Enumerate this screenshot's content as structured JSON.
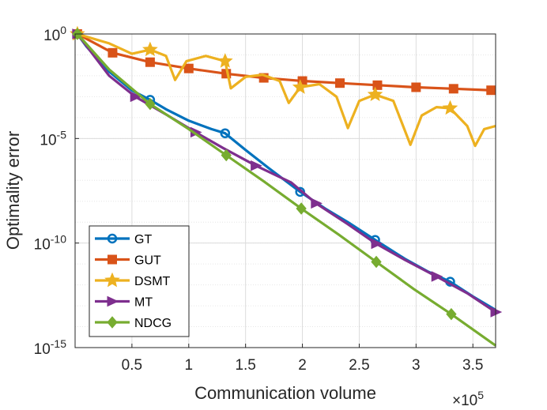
{
  "chart_data": {
    "type": "line",
    "title": "",
    "xlabel": "Communication volume",
    "ylabel": "Optimality error",
    "x_multiplier": "×10",
    "x_multiplier_exp": "5",
    "xscale": "linear",
    "yscale": "log",
    "xlim": [
      0.0,
      3.7
    ],
    "ylim_exp": [
      -15,
      0
    ],
    "grid": true,
    "x_ticks": [
      {
        "value": 0.5,
        "label": "0.5"
      },
      {
        "value": 1.0,
        "label": "1"
      },
      {
        "value": 1.5,
        "label": "1.5"
      },
      {
        "value": 2.0,
        "label": "2"
      },
      {
        "value": 2.5,
        "label": "2.5"
      },
      {
        "value": 3.0,
        "label": "3"
      },
      {
        "value": 3.5,
        "label": "3.5"
      }
    ],
    "y_ticks": [
      {
        "exp": 0,
        "base": "10",
        "sup": "0"
      },
      {
        "exp": -5,
        "base": "10",
        "sup": "-5"
      },
      {
        "exp": -10,
        "base": "10",
        "sup": "-10"
      },
      {
        "exp": -15,
        "base": "10",
        "sup": "-15"
      }
    ],
    "legend_position": "bottom-left",
    "series": [
      {
        "name": "GT",
        "color": "#0072BD",
        "marker": "circle",
        "points": [
          [
            0.02,
            0.0
          ],
          [
            0.1,
            -0.6
          ],
          [
            0.3,
            -1.8
          ],
          [
            0.5,
            -2.7
          ],
          [
            0.66,
            -3.15
          ],
          [
            0.8,
            -3.6
          ],
          [
            1.0,
            -4.15
          ],
          [
            1.2,
            -4.55
          ],
          [
            1.32,
            -4.75
          ],
          [
            1.5,
            -5.55
          ],
          [
            1.7,
            -6.4
          ],
          [
            1.98,
            -7.55
          ],
          [
            2.2,
            -8.35
          ],
          [
            2.4,
            -9.0
          ],
          [
            2.64,
            -9.85
          ],
          [
            2.9,
            -10.75
          ],
          [
            3.1,
            -11.35
          ],
          [
            3.3,
            -11.85
          ],
          [
            3.5,
            -12.55
          ],
          [
            3.7,
            -13.2
          ]
        ],
        "markers_x": [
          0.02,
          0.66,
          1.32,
          1.98,
          2.64,
          3.3
        ]
      },
      {
        "name": "GUT",
        "color": "#D95319",
        "marker": "square",
        "points": [
          [
            0.02,
            0.0
          ],
          [
            0.33,
            -0.9
          ],
          [
            0.66,
            -1.35
          ],
          [
            1.0,
            -1.65
          ],
          [
            1.33,
            -1.9
          ],
          [
            1.66,
            -2.1
          ],
          [
            2.0,
            -2.25
          ],
          [
            2.33,
            -2.35
          ],
          [
            2.66,
            -2.45
          ],
          [
            3.0,
            -2.55
          ],
          [
            3.33,
            -2.62
          ],
          [
            3.7,
            -2.7
          ]
        ],
        "markers_x": [
          0.02,
          0.33,
          0.66,
          1.0,
          1.33,
          1.66,
          2.0,
          2.33,
          2.66,
          3.0,
          3.33,
          3.66
        ]
      },
      {
        "name": "DSMT",
        "color": "#EDB120",
        "marker": "star",
        "points": [
          [
            0.02,
            0.0
          ],
          [
            0.3,
            -0.45
          ],
          [
            0.5,
            -0.95
          ],
          [
            0.66,
            -0.75
          ],
          [
            0.8,
            -1.05
          ],
          [
            0.88,
            -2.2
          ],
          [
            0.98,
            -1.3
          ],
          [
            1.15,
            -1.05
          ],
          [
            1.32,
            -1.3
          ],
          [
            1.37,
            -2.6
          ],
          [
            1.5,
            -2.05
          ],
          [
            1.65,
            -1.95
          ],
          [
            1.8,
            -2.25
          ],
          [
            1.88,
            -3.3
          ],
          [
            1.98,
            -2.55
          ],
          [
            2.15,
            -2.4
          ],
          [
            2.3,
            -3.0
          ],
          [
            2.4,
            -4.5
          ],
          [
            2.5,
            -3.2
          ],
          [
            2.64,
            -2.9
          ],
          [
            2.8,
            -3.2
          ],
          [
            2.95,
            -5.3
          ],
          [
            3.05,
            -3.9
          ],
          [
            3.18,
            -3.5
          ],
          [
            3.3,
            -3.55
          ],
          [
            3.45,
            -4.4
          ],
          [
            3.52,
            -5.35
          ],
          [
            3.6,
            -4.55
          ],
          [
            3.7,
            -4.4
          ]
        ],
        "markers_x": [
          0.02,
          0.66,
          1.32,
          1.98,
          2.64,
          3.3
        ]
      },
      {
        "name": "MT",
        "color": "#7E2F8E",
        "marker": "triangle-right",
        "points": [
          [
            0.02,
            0.0
          ],
          [
            0.3,
            -2.0
          ],
          [
            0.53,
            -3.0
          ],
          [
            0.8,
            -3.85
          ],
          [
            1.06,
            -4.7
          ],
          [
            1.3,
            -5.45
          ],
          [
            1.59,
            -6.3
          ],
          [
            1.9,
            -7.1
          ],
          [
            2.12,
            -8.1
          ],
          [
            2.4,
            -9.1
          ],
          [
            2.64,
            -10.0
          ],
          [
            2.9,
            -10.8
          ],
          [
            3.18,
            -11.6
          ],
          [
            3.45,
            -12.4
          ],
          [
            3.7,
            -13.3
          ]
        ],
        "markers_x": [
          0.02,
          0.53,
          1.06,
          1.59,
          2.12,
          2.65,
          3.18,
          3.7
        ]
      },
      {
        "name": "NDCG",
        "color": "#77AC30",
        "marker": "diamond",
        "points": [
          [
            0.02,
            0.0
          ],
          [
            0.3,
            -1.7
          ],
          [
            0.66,
            -3.35
          ],
          [
            1.0,
            -4.55
          ],
          [
            1.33,
            -5.8
          ],
          [
            1.66,
            -7.05
          ],
          [
            1.99,
            -8.35
          ],
          [
            2.32,
            -9.6
          ],
          [
            2.65,
            -10.9
          ],
          [
            2.98,
            -12.2
          ],
          [
            3.31,
            -13.4
          ],
          [
            3.7,
            -14.9
          ]
        ],
        "markers_x": [
          0.02,
          0.66,
          1.33,
          1.99,
          2.65,
          3.31
        ]
      }
    ]
  }
}
